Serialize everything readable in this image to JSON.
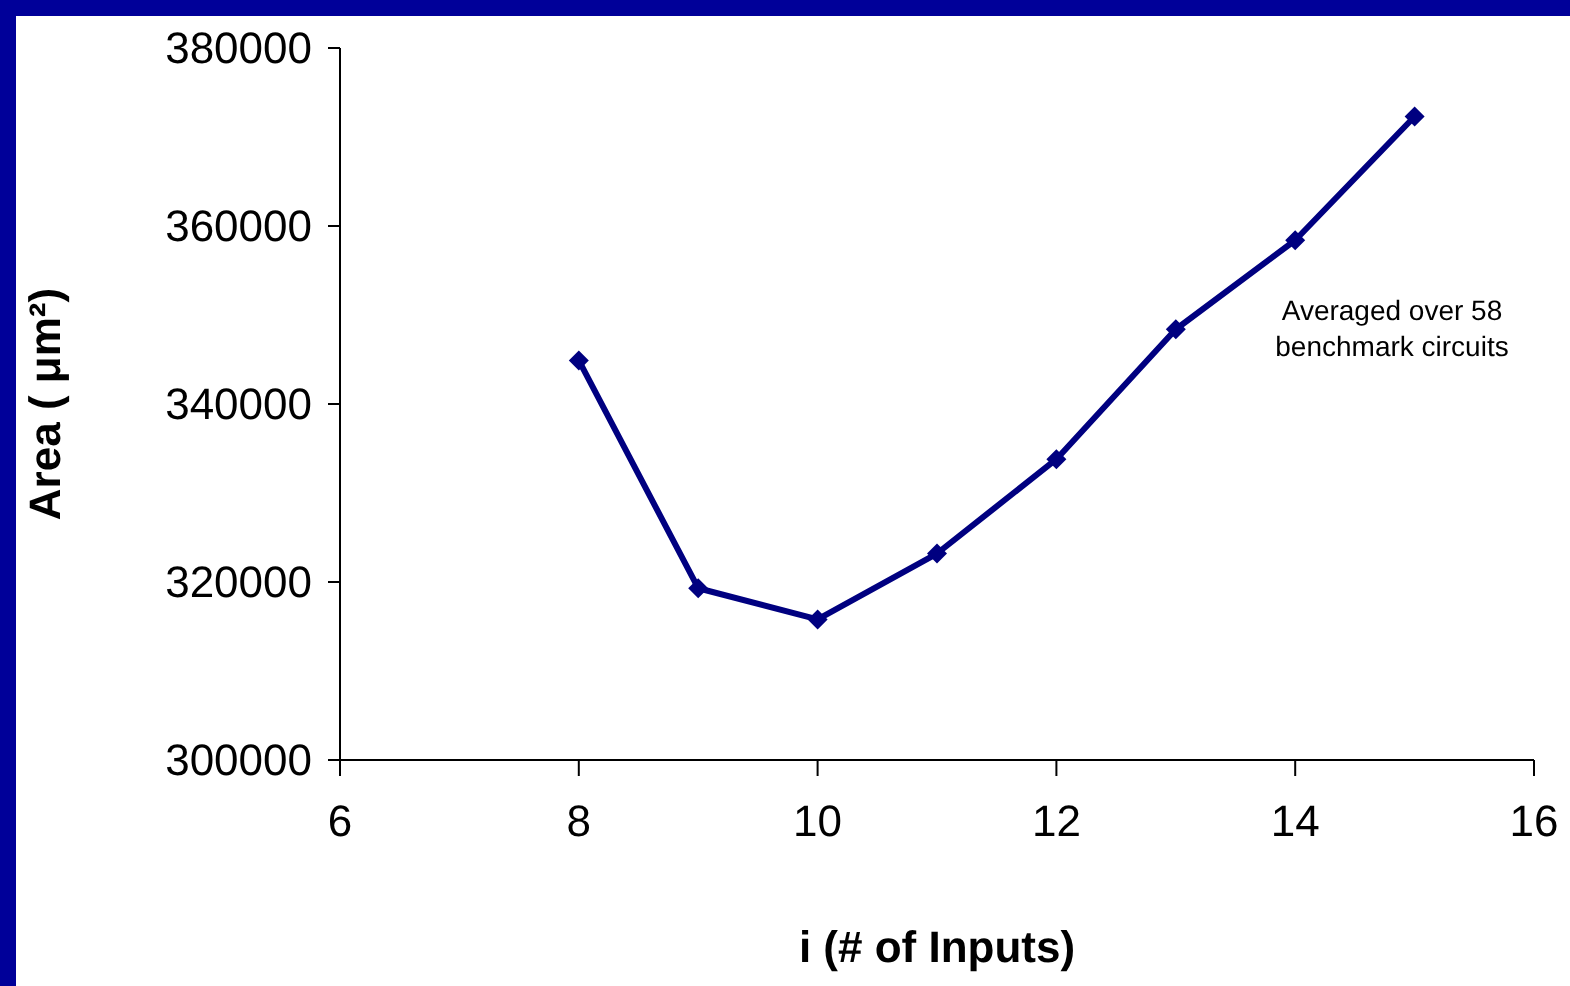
{
  "chart_data": {
    "type": "line",
    "xlabel": "i (# of Inputs)",
    "ylabel": "Area ( μm²)",
    "x": [
      8,
      9,
      10,
      11,
      12,
      13,
      14,
      15
    ],
    "series": [
      {
        "color": "#000080",
        "values": [
          344900,
          319300,
          315800,
          323200,
          333800,
          348400,
          358400,
          372300
        ]
      }
    ],
    "xlim": [
      6,
      16
    ],
    "xticks": [
      6,
      8,
      10,
      12,
      14,
      16
    ],
    "ylim": [
      300000,
      380000
    ],
    "yticks": [
      300000,
      320000,
      340000,
      360000,
      380000
    ],
    "marker": "diamond",
    "line_style": "solid",
    "grid": false,
    "annotations": [
      "Averaged over 58 benchmark circuits"
    ]
  }
}
